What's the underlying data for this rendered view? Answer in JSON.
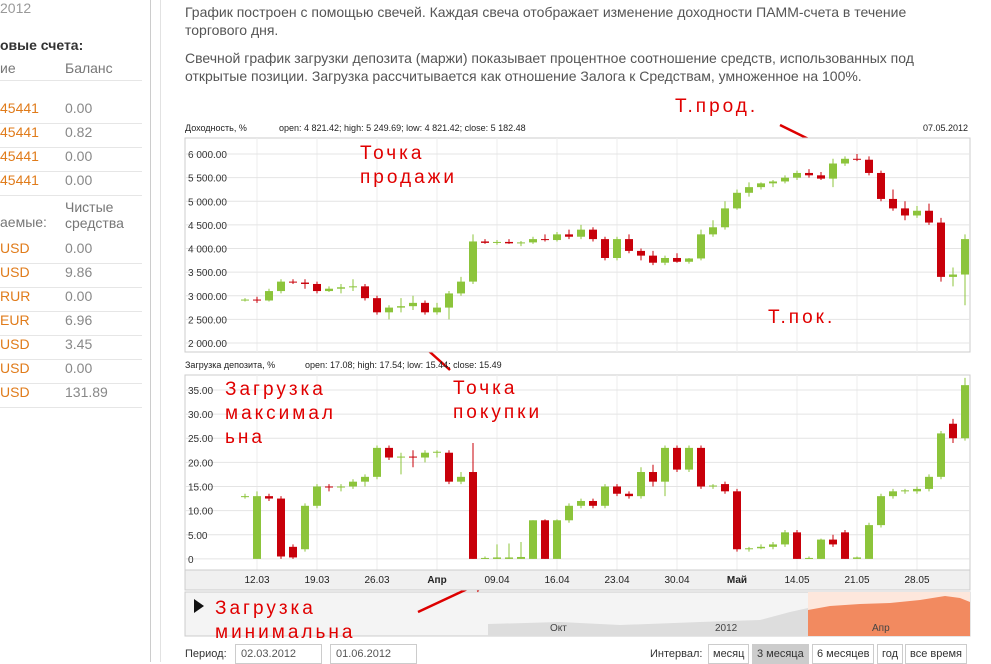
{
  "sidebar": {
    "year": "2012",
    "accounts_title": "овые счета:",
    "col_name": "ие",
    "col_balance": "Баланс",
    "accounts": [
      [
        "45441",
        "0.00"
      ],
      [
        "45441",
        "0.82"
      ],
      [
        "45441",
        "0.00"
      ],
      [
        "45441",
        "0.00"
      ]
    ],
    "col_name2": "аемые:",
    "col_funds": "Чистые средства",
    "funds": [
      [
        "USD",
        "0.00"
      ],
      [
        "USD",
        "9.86"
      ],
      [
        "RUR",
        "0.00"
      ],
      [
        "EUR",
        "6.96"
      ],
      [
        "USD",
        "3.45"
      ],
      [
        "USD",
        "0.00"
      ],
      [
        "USD",
        "131.89"
      ]
    ]
  },
  "description": [
    "График построен с помощью свечей. Каждая свеча отображает изменение доходности ПАММ-счета в течение торгового дня.",
    "Свечной график загрузки депозита (маржи) показывает процентное соотношение средств, использованных под открытые позиции. Загрузка рассчитывается как отношение Залога к Средствам, умноженное на 100%."
  ],
  "chart_data": [
    {
      "type": "candlestick",
      "title": "Доходность, %",
      "info": "open: 4 821.42; high: 5 249.69; low: 4 821.42; close: 5 182.48",
      "date": "07.05.2012",
      "ylim": [
        1810,
        6340
      ],
      "yticks": [
        {
          "value": 2000,
          "label": "2 000.00"
        },
        {
          "value": 2500,
          "label": "2 500.00"
        },
        {
          "value": 3000,
          "label": "3 000.00"
        },
        {
          "value": 3500,
          "label": "3 500.00"
        },
        {
          "value": 4000,
          "label": "4 000.00"
        },
        {
          "value": 4500,
          "label": "4 500.00"
        },
        {
          "value": 5000,
          "label": "5 000.00"
        },
        {
          "value": 5500,
          "label": "5 500.00"
        },
        {
          "value": 6000,
          "label": "6 000.00"
        }
      ],
      "up_color": "#8cc43b",
      "down_color": "#c8000a",
      "candles": [
        [
          2900,
          2950,
          2880,
          2920
        ],
        [
          2920,
          2980,
          2850,
          2900
        ],
        [
          2900,
          3150,
          2880,
          3100
        ],
        [
          3100,
          3350,
          3050,
          3300
        ],
        [
          3300,
          3350,
          3250,
          3280
        ],
        [
          3280,
          3350,
          3150,
          3250
        ],
        [
          3250,
          3300,
          3050,
          3100
        ],
        [
          3100,
          3200,
          3080,
          3150
        ],
        [
          3150,
          3250,
          3050,
          3180
        ],
        [
          3180,
          3350,
          3100,
          3200
        ],
        [
          3200,
          3250,
          2900,
          2950
        ],
        [
          2950,
          3000,
          2600,
          2650
        ],
        [
          2650,
          2800,
          2500,
          2750
        ],
        [
          2750,
          2950,
          2650,
          2780
        ],
        [
          2780,
          3000,
          2700,
          2850
        ],
        [
          2850,
          2900,
          2600,
          2650
        ],
        [
          2650,
          2850,
          2600,
          2750
        ],
        [
          2750,
          3100,
          2500,
          3050
        ],
        [
          3050,
          3400,
          3000,
          3300
        ],
        [
          3300,
          4300,
          3250,
          4150
        ],
        [
          4150,
          4200,
          4100,
          4120
        ],
        [
          4120,
          4180,
          4080,
          4140
        ],
        [
          4140,
          4200,
          4100,
          4110
        ],
        [
          4110,
          4160,
          4050,
          4130
        ],
        [
          4130,
          4250,
          4100,
          4200
        ],
        [
          4200,
          4300,
          4150,
          4180
        ],
        [
          4180,
          4350,
          4150,
          4300
        ],
        [
          4300,
          4400,
          4200,
          4250
        ],
        [
          4250,
          4500,
          4200,
          4400
        ],
        [
          4400,
          4450,
          4150,
          4200
        ],
        [
          4200,
          4250,
          3750,
          3800
        ],
        [
          3800,
          4250,
          3750,
          4200
        ],
        [
          4200,
          4300,
          3900,
          3950
        ],
        [
          3950,
          4000,
          3750,
          3850
        ],
        [
          3850,
          3950,
          3650,
          3700
        ],
        [
          3700,
          3850,
          3650,
          3800
        ],
        [
          3800,
          3900,
          3700,
          3720
        ],
        [
          3720,
          3800,
          3680,
          3790
        ],
        [
          3790,
          4400,
          3750,
          4300
        ],
        [
          4300,
          4600,
          4250,
          4450
        ],
        [
          4450,
          5000,
          4400,
          4850
        ],
        [
          4850,
          5250,
          4820,
          5180
        ],
        [
          5180,
          5400,
          5100,
          5300
        ],
        [
          5300,
          5400,
          5250,
          5380
        ],
        [
          5380,
          5450,
          5300,
          5420
        ],
        [
          5420,
          5550,
          5380,
          5500
        ],
        [
          5500,
          5650,
          5450,
          5600
        ],
        [
          5600,
          5680,
          5500,
          5550
        ],
        [
          5550,
          5620,
          5450,
          5480
        ],
        [
          5480,
          5900,
          5300,
          5800
        ],
        [
          5800,
          5950,
          5750,
          5900
        ],
        [
          5900,
          6000,
          5850,
          5880
        ],
        [
          5880,
          5950,
          5550,
          5600
        ],
        [
          5600,
          5650,
          5000,
          5050
        ],
        [
          5050,
          5250,
          4800,
          4850
        ],
        [
          4850,
          5000,
          4600,
          4700
        ],
        [
          4700,
          4900,
          4650,
          4800
        ],
        [
          4800,
          4950,
          4500,
          4550
        ],
        [
          4550,
          4650,
          3300,
          3400
        ],
        [
          3400,
          3600,
          3200,
          3450
        ],
        [
          3450,
          4300,
          2800,
          4200
        ]
      ]
    },
    {
      "type": "candlestick",
      "title": "Загрузка депозита, %",
      "info": "open: 17.08; high: 17.54; low: 15.44; close: 15.49",
      "ylim": [
        -2.3,
        38.1
      ],
      "yticks": [
        0,
        {
          "value": 5,
          "label": "5.00"
        },
        {
          "value": 10,
          "label": "10.00"
        },
        {
          "value": 15,
          "label": "15.00"
        },
        {
          "value": 20,
          "label": "20.00"
        },
        {
          "value": 25,
          "label": "25.00"
        },
        {
          "value": 30,
          "label": "30.00"
        },
        {
          "value": 35,
          "label": "35.00"
        }
      ],
      "up_color": "#8cc43b",
      "down_color": "#c8000a",
      "candles": [
        [
          13,
          13.5,
          12.5,
          13
        ],
        [
          0,
          14,
          0,
          13
        ],
        [
          13,
          13.5,
          12,
          12.5
        ],
        [
          12.5,
          13,
          0,
          0.5
        ],
        [
          2.5,
          3,
          0,
          0.3
        ],
        [
          2,
          11.5,
          1.5,
          11
        ],
        [
          11,
          15.5,
          10.5,
          15
        ],
        [
          15,
          15.5,
          14,
          14.8
        ],
        [
          14.8,
          15.5,
          14,
          15
        ],
        [
          15,
          16.5,
          14.5,
          16
        ],
        [
          16,
          17.5,
          15,
          17
        ],
        [
          17,
          23.5,
          16.5,
          23
        ],
        [
          23,
          23.5,
          20.5,
          21
        ],
        [
          21,
          22,
          17.5,
          21.2
        ],
        [
          21.2,
          22.5,
          19,
          21
        ],
        [
          21,
          22.5,
          20,
          22
        ],
        [
          22,
          22.5,
          21,
          22.2
        ],
        [
          22,
          22.5,
          15.5,
          16
        ],
        [
          16,
          18,
          15.5,
          17
        ],
        [
          18,
          24,
          0,
          0
        ],
        [
          0,
          0.5,
          0,
          0.2
        ],
        [
          0,
          3,
          0,
          0.3
        ],
        [
          0,
          3.2,
          0,
          0.3
        ],
        [
          0,
          3.5,
          0,
          0.4
        ],
        [
          0,
          8,
          0,
          8
        ],
        [
          8,
          8.2,
          0,
          0
        ],
        [
          0,
          8.2,
          0,
          8
        ],
        [
          8,
          11.5,
          7.5,
          11
        ],
        [
          11,
          12.5,
          10.5,
          12
        ],
        [
          12,
          12.5,
          10.5,
          11
        ],
        [
          11,
          15.5,
          10.5,
          15
        ],
        [
          15,
          15.5,
          13,
          13.5
        ],
        [
          13.5,
          14,
          12.5,
          13
        ],
        [
          13,
          19,
          12.5,
          18
        ],
        [
          18,
          19.5,
          15,
          16
        ],
        [
          16,
          23.5,
          13,
          23
        ],
        [
          23,
          23.5,
          18,
          18.5
        ],
        [
          18.5,
          23.5,
          18,
          23
        ],
        [
          23,
          23.5,
          14.5,
          15
        ],
        [
          15,
          15.5,
          14.5,
          15.2
        ],
        [
          15.5,
          16,
          13.5,
          14
        ],
        [
          14,
          14.5,
          1.5,
          2
        ],
        [
          2,
          2.5,
          1.5,
          2.2
        ],
        [
          2.2,
          3,
          2,
          2.5
        ],
        [
          2.5,
          3.5,
          2,
          3
        ],
        [
          3,
          6,
          2.5,
          5.5
        ],
        [
          5.5,
          6,
          0,
          0
        ],
        [
          0,
          0.5,
          0,
          0.2
        ],
        [
          0,
          4.2,
          0,
          4
        ],
        [
          4,
          5,
          2.5,
          3
        ],
        [
          5.5,
          6,
          0,
          0
        ],
        [
          0,
          0.5,
          0,
          0.3
        ],
        [
          0,
          7.5,
          0,
          7
        ],
        [
          7,
          13.5,
          6.5,
          13
        ],
        [
          13,
          14.5,
          12.5,
          14
        ],
        [
          14,
          14.5,
          13.5,
          14.2
        ],
        [
          14,
          15,
          13.5,
          14.5
        ],
        [
          14.5,
          17.5,
          14,
          17
        ],
        [
          17,
          26.5,
          16.5,
          26
        ],
        [
          28,
          29,
          24,
          25
        ],
        [
          25,
          37.5,
          24.5,
          36
        ]
      ]
    }
  ],
  "x_labels": [
    "12.03",
    "19.03",
    "26.03",
    "Апр",
    "09.04",
    "16.04",
    "23.04",
    "30.04",
    "Май",
    "14.05",
    "21.05",
    "28.05"
  ],
  "navigator_labels": [
    "Окт",
    "2012",
    "Апр"
  ],
  "annotations": [
    [
      "Т.прод."
    ],
    [
      "Точка",
      "продажи"
    ],
    [
      "Т.пок."
    ],
    [
      "Точка",
      "покупки"
    ],
    [
      "Загрузка",
      "максимал",
      "ьна"
    ],
    [
      "Загрузка",
      "минимальна"
    ]
  ],
  "footer": {
    "period_label": "Период:",
    "from": "02.03.2012",
    "to": "01.06.2012",
    "interval_label": "Интервал:",
    "buttons": [
      "месяц",
      "3 месяца",
      "6 месяцев",
      "год",
      "все время"
    ]
  }
}
